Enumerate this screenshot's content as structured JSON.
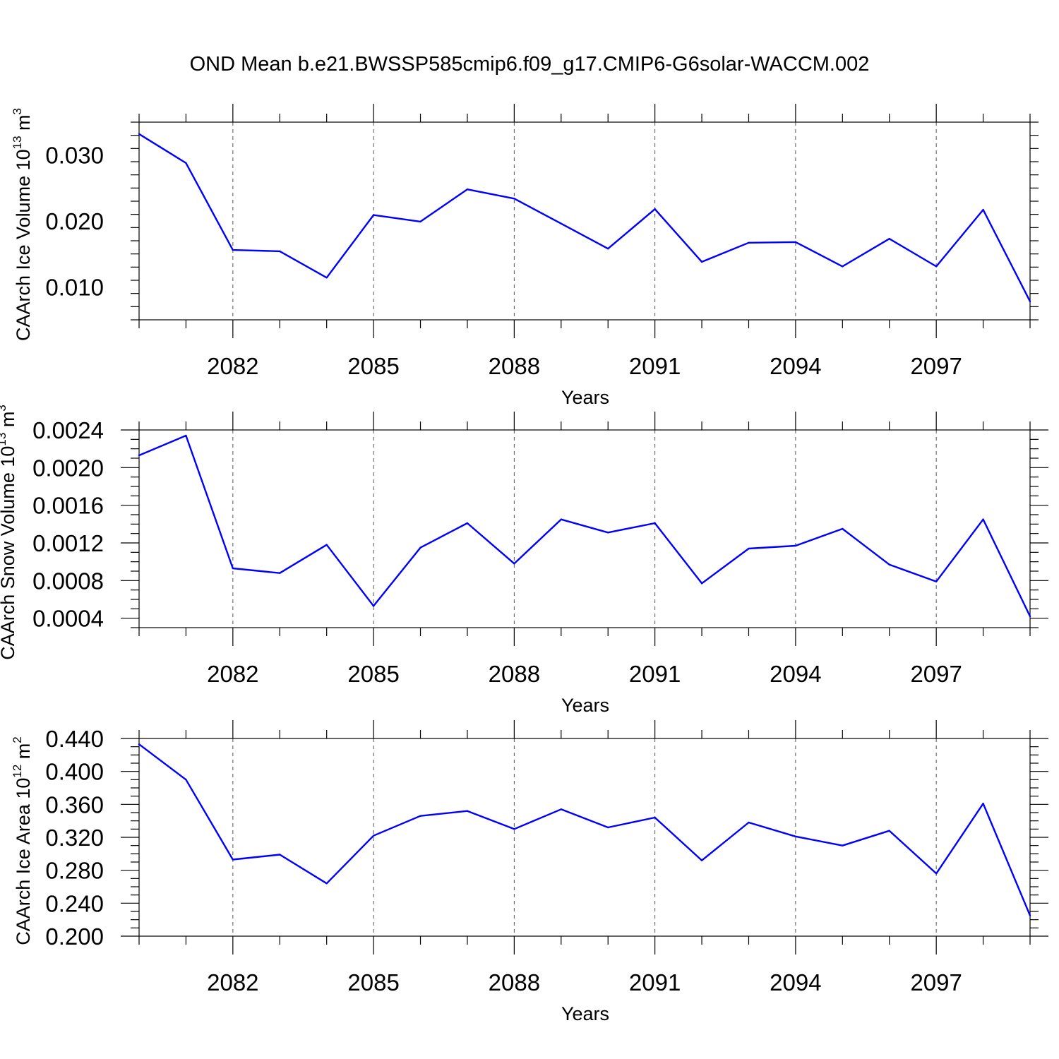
{
  "figure_title": "OND Mean b.e21.BWSSP585cmip6.f09_g17.CMIP6-G6solar-WACCM.002",
  "colors": {
    "line": "#0000ff",
    "axis": "#000000",
    "grid": "#555555"
  },
  "chart_data": [
    {
      "type": "line",
      "title": "",
      "xlabel": "Years",
      "ylabel": "CAArch Ice Volume 10",
      "ylabel_exp": "13",
      "ylabel_unit": " m",
      "ylabel_unit_exp": "3",
      "xlim": [
        2080,
        2099
      ],
      "ylim": [
        0.005,
        0.035
      ],
      "x_major_ticks": [
        2082,
        2085,
        2088,
        2091,
        2094,
        2097
      ],
      "x_tick_labels": [
        "2082",
        "2085",
        "2088",
        "2091",
        "2094",
        "2097"
      ],
      "y_major_ticks": [
        0.01,
        0.02,
        0.03
      ],
      "y_tick_labels": [
        "0.010",
        "0.020",
        "0.030"
      ],
      "y_minor_step": 0.002,
      "grid": "x-dashed",
      "x": [
        2080,
        2081,
        2082,
        2083,
        2084,
        2085,
        2086,
        2087,
        2088,
        2089,
        2090,
        2091,
        2092,
        2093,
        2094,
        2095,
        2096,
        2097,
        2098,
        2099
      ],
      "y": [
        0.0332,
        0.0288,
        0.0156,
        0.0154,
        0.0114,
        0.0209,
        0.0199,
        0.0248,
        0.0234,
        0.0196,
        0.0158,
        0.0218,
        0.0138,
        0.0167,
        0.0168,
        0.0131,
        0.0173,
        0.0131,
        0.0217,
        0.0078
      ]
    },
    {
      "type": "line",
      "title": "",
      "xlabel": "Years",
      "ylabel": "CAArch Snow Volume 10",
      "ylabel_exp": "13",
      "ylabel_unit": " m",
      "ylabel_unit_exp": "3",
      "xlim": [
        2080,
        2099
      ],
      "ylim": [
        0.0003,
        0.0024
      ],
      "x_major_ticks": [
        2082,
        2085,
        2088,
        2091,
        2094,
        2097
      ],
      "x_tick_labels": [
        "2082",
        "2085",
        "2088",
        "2091",
        "2094",
        "2097"
      ],
      "y_major_ticks": [
        0.0004,
        0.0008,
        0.0012,
        0.0016,
        0.002,
        0.0024
      ],
      "y_tick_labels": [
        "0.0004",
        "0.0008",
        "0.0012",
        "0.0016",
        "0.0020",
        "0.0024"
      ],
      "y_minor_step": 0.0001,
      "grid": "x-dashed",
      "x": [
        2080,
        2081,
        2082,
        2083,
        2084,
        2085,
        2086,
        2087,
        2088,
        2089,
        2090,
        2091,
        2092,
        2093,
        2094,
        2095,
        2096,
        2097,
        2098,
        2099
      ],
      "y": [
        0.00213,
        0.00234,
        0.00093,
        0.00088,
        0.00118,
        0.00053,
        0.00115,
        0.00141,
        0.00098,
        0.00145,
        0.00131,
        0.00141,
        0.00077,
        0.00114,
        0.00117,
        0.00135,
        0.00097,
        0.00079,
        0.00145,
        0.00042
      ]
    },
    {
      "type": "line",
      "title": "",
      "xlabel": "Years",
      "ylabel": "CAArch Ice Area 10",
      "ylabel_exp": "12",
      "ylabel_unit": " m",
      "ylabel_unit_exp": "2",
      "xlim": [
        2080,
        2099
      ],
      "ylim": [
        0.2,
        0.44
      ],
      "x_major_ticks": [
        2082,
        2085,
        2088,
        2091,
        2094,
        2097
      ],
      "x_tick_labels": [
        "2082",
        "2085",
        "2088",
        "2091",
        "2094",
        "2097"
      ],
      "y_major_ticks": [
        0.2,
        0.24,
        0.28,
        0.32,
        0.36,
        0.4,
        0.44
      ],
      "y_tick_labels": [
        "0.200",
        "0.240",
        "0.280",
        "0.320",
        "0.360",
        "0.400",
        "0.440"
      ],
      "y_minor_step": 0.01,
      "grid": "x-dashed",
      "x": [
        2080,
        2081,
        2082,
        2083,
        2084,
        2085,
        2086,
        2087,
        2088,
        2089,
        2090,
        2091,
        2092,
        2093,
        2094,
        2095,
        2096,
        2097,
        2098,
        2099
      ],
      "y": [
        0.433,
        0.39,
        0.293,
        0.299,
        0.264,
        0.322,
        0.346,
        0.352,
        0.33,
        0.354,
        0.332,
        0.344,
        0.292,
        0.338,
        0.321,
        0.31,
        0.328,
        0.276,
        0.361,
        0.225
      ]
    }
  ]
}
